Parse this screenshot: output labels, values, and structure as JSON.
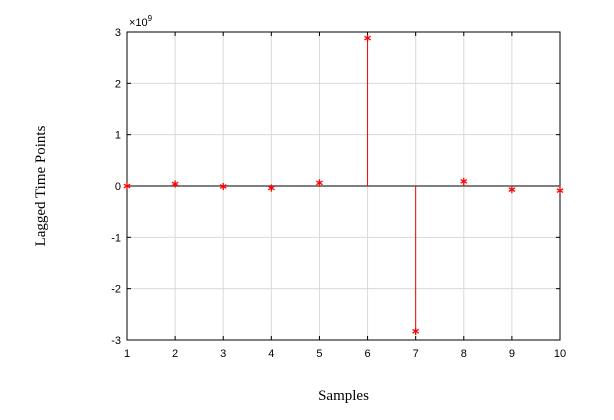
{
  "chart_data": {
    "type": "scatter",
    "style": "stem",
    "title": "",
    "xlabel": "Samples",
    "ylabel": "Lagged Time Points",
    "x": [
      1,
      2,
      3,
      4,
      5,
      6,
      7,
      8,
      9,
      10
    ],
    "y": [
      0.0,
      0.04,
      -0.01,
      -0.04,
      0.06,
      2.88,
      -2.83,
      0.09,
      -0.07,
      -0.09
    ],
    "y_multiplier_label": "×10",
    "y_multiplier_exponent": "9",
    "xlim": [
      1,
      10
    ],
    "ylim": [
      -3,
      3
    ],
    "xticks": [
      "1",
      "2",
      "3",
      "4",
      "5",
      "6",
      "7",
      "8",
      "9",
      "10"
    ],
    "yticks": [
      "-3",
      "-2",
      "-1",
      "0",
      "1",
      "2",
      "3"
    ],
    "grid": true,
    "marker_color": "#ff0000",
    "baseline_color": "#555555",
    "grid_color": "#d9d9d9"
  }
}
